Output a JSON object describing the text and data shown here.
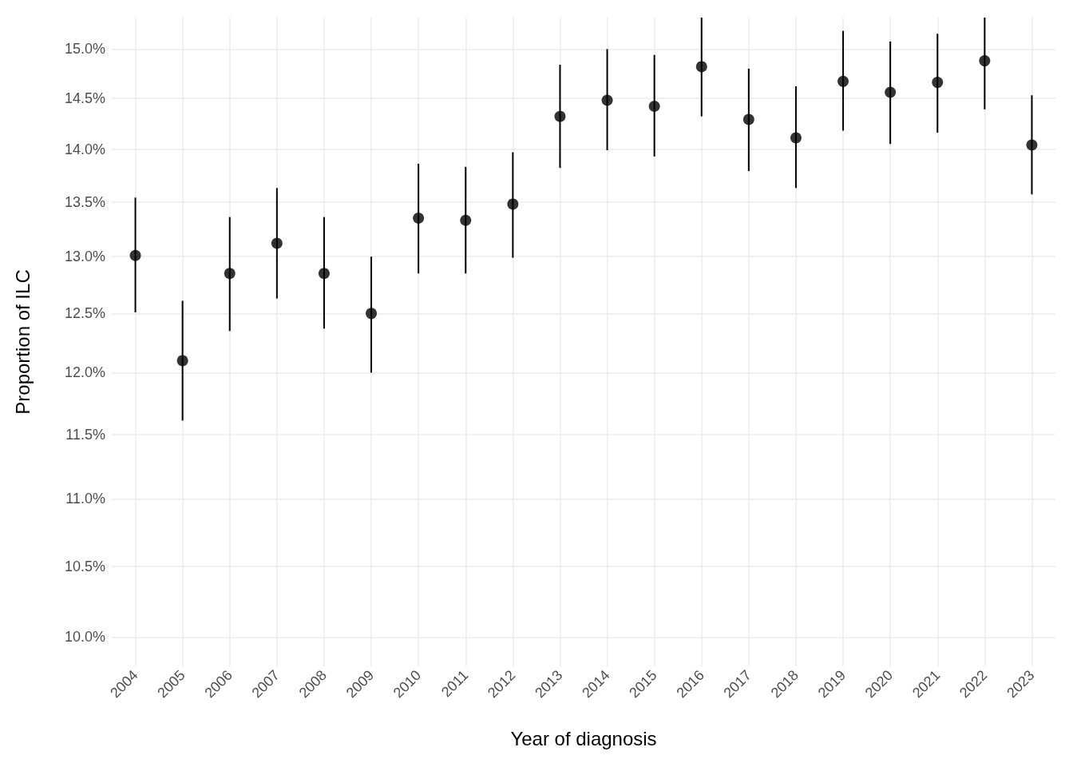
{
  "chart_data": {
    "type": "scatter",
    "xlabel": "Year of diagnosis",
    "ylabel": "Proportion of ILC",
    "categories": [
      "2004",
      "2005",
      "2006",
      "2007",
      "2008",
      "2009",
      "2010",
      "2011",
      "2012",
      "2013",
      "2014",
      "2015",
      "2016",
      "2017",
      "2018",
      "2019",
      "2020",
      "2021",
      "2022",
      "2023"
    ],
    "values": [
      13.01,
      12.1,
      12.85,
      13.12,
      12.85,
      12.5,
      13.35,
      13.33,
      13.48,
      14.32,
      14.48,
      14.42,
      14.82,
      14.29,
      14.11,
      14.67,
      14.56,
      14.66,
      14.88,
      14.04
    ],
    "errors": [
      [
        12.51,
        13.54
      ],
      [
        11.61,
        12.61
      ],
      [
        12.35,
        13.36
      ],
      [
        12.63,
        13.63
      ],
      [
        12.37,
        13.36
      ],
      [
        12.0,
        13.0
      ],
      [
        12.85,
        13.86
      ],
      [
        12.85,
        13.83
      ],
      [
        12.99,
        13.97
      ],
      [
        13.82,
        14.84
      ],
      [
        13.99,
        15.0
      ],
      [
        13.93,
        14.94
      ],
      [
        14.32,
        15.33
      ],
      [
        13.79,
        14.8
      ],
      [
        13.63,
        14.62
      ],
      [
        14.18,
        15.19
      ],
      [
        14.05,
        15.08
      ],
      [
        14.16,
        15.16
      ],
      [
        14.39,
        15.33
      ],
      [
        13.57,
        14.53
      ]
    ],
    "color": "#000000",
    "marker": "circle",
    "log": true,
    "grid": true,
    "ylim": [
      9.8,
      15.33
    ],
    "yticks": [
      {
        "value": 10,
        "label": "10.0%"
      },
      {
        "value": 10.5,
        "label": "10.5%"
      },
      {
        "value": 11,
        "label": "11.0%"
      },
      {
        "value": 11.5,
        "label": "11.5%"
      },
      {
        "value": 12,
        "label": "12.0%"
      },
      {
        "value": 12.5,
        "label": "12.5%"
      },
      {
        "value": 13,
        "label": "13.0%"
      },
      {
        "value": 13.5,
        "label": "13.5%"
      },
      {
        "value": 14,
        "label": "14.0%"
      },
      {
        "value": 14.5,
        "label": "14.5%"
      },
      {
        "value": 15,
        "label": "15.0%"
      }
    ]
  }
}
